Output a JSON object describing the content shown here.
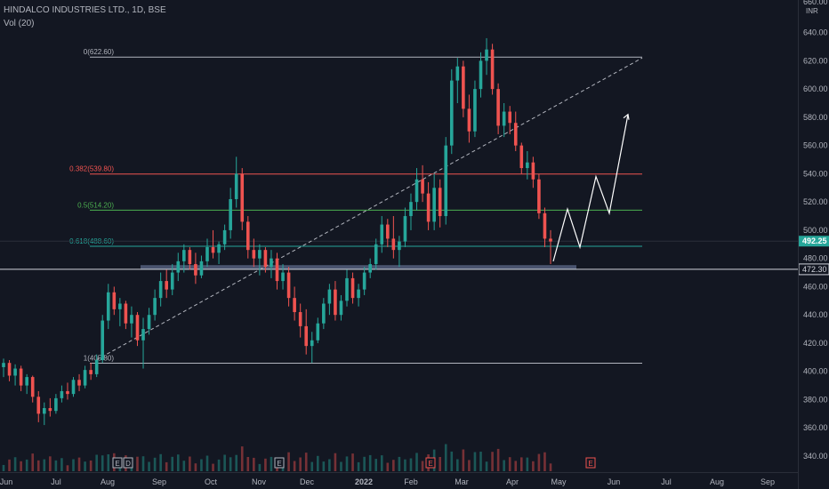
{
  "header": {
    "symbol_title": "HINDALCO INDUSTRIES LTD., 1D, BSE",
    "volume_label": "Vol (20)"
  },
  "colors": {
    "background": "#131722",
    "up": "#26a69a",
    "down": "#ef5350",
    "text": "#b2b5be",
    "fib_0": "#b2b5be",
    "fib_0382": "#ef5350",
    "fib_05": "#4caf50",
    "fib_0618": "#26a69a",
    "fib_1": "#b2b5be",
    "support_zone": "#5d6a8a"
  },
  "chart_data": {
    "type": "candlestick",
    "title": "HINDALCO INDUSTRIES LTD., 1D, BSE",
    "currency_label": "INR",
    "y_axis": {
      "ticks": [
        340,
        360,
        380,
        400,
        420,
        440,
        460,
        480,
        500,
        520,
        540,
        560,
        580,
        600,
        620,
        640
      ],
      "top_label": "660.00"
    },
    "x_axis": {
      "ticks": [
        "Jun",
        "Jul",
        "Aug",
        "Sep",
        "Oct",
        "Nov",
        "Dec",
        "2022",
        "Feb",
        "Mar",
        "Apr",
        "May",
        "Jun",
        "Jul",
        "Aug",
        "Sep"
      ]
    },
    "price_labels": {
      "last_price": "492.25",
      "horizontal_line": "472.30"
    },
    "fib_levels": [
      {
        "label": "0(622.60)",
        "value": 622.6
      },
      {
        "label": "0.382(539.80)",
        "value": 539.8
      },
      {
        "label": "0.5(514.20)",
        "value": 514.2
      },
      {
        "label": "0.618(488.60)",
        "value": 488.6
      },
      {
        "label": "1(405.80)",
        "value": 405.8
      }
    ],
    "trend_line": {
      "from": {
        "x": "Aug",
        "price": 408
      },
      "to": {
        "x": "Jul",
        "price": 622
      }
    },
    "support_zone": {
      "from": "Sep",
      "to": "May",
      "high": 474,
      "low": 472
    },
    "projection_path": [
      {
        "x": "May",
        "price": 478
      },
      {
        "x": "May",
        "price": 515
      },
      {
        "x": "May",
        "price": 488
      },
      {
        "x": "Jun",
        "price": 538
      },
      {
        "x": "Jun",
        "price": 512
      },
      {
        "x": "Jun",
        "price": 582
      }
    ],
    "event_markers": [
      {
        "label": "E",
        "x": "Aug"
      },
      {
        "label": "D",
        "x": "Aug"
      },
      {
        "label": "E",
        "x": "Nov"
      },
      {
        "label": "E",
        "x": "Feb"
      },
      {
        "label": "E",
        "x": "May"
      }
    ],
    "candles": [
      {
        "o": 403,
        "h": 409,
        "l": 396,
        "c": 406
      },
      {
        "o": 406,
        "h": 408,
        "l": 393,
        "c": 397
      },
      {
        "o": 397,
        "h": 405,
        "l": 390,
        "c": 402
      },
      {
        "o": 402,
        "h": 404,
        "l": 386,
        "c": 390
      },
      {
        "o": 390,
        "h": 398,
        "l": 384,
        "c": 396
      },
      {
        "o": 396,
        "h": 397,
        "l": 378,
        "c": 382
      },
      {
        "o": 382,
        "h": 386,
        "l": 364,
        "c": 370
      },
      {
        "o": 370,
        "h": 378,
        "l": 362,
        "c": 374
      },
      {
        "o": 374,
        "h": 381,
        "l": 368,
        "c": 372
      },
      {
        "o": 372,
        "h": 384,
        "l": 370,
        "c": 381
      },
      {
        "o": 381,
        "h": 390,
        "l": 378,
        "c": 386
      },
      {
        "o": 386,
        "h": 392,
        "l": 380,
        "c": 384
      },
      {
        "o": 384,
        "h": 396,
        "l": 382,
        "c": 394
      },
      {
        "o": 394,
        "h": 398,
        "l": 386,
        "c": 390
      },
      {
        "o": 390,
        "h": 404,
        "l": 388,
        "c": 401
      },
      {
        "o": 401,
        "h": 406,
        "l": 394,
        "c": 398
      },
      {
        "o": 398,
        "h": 412,
        "l": 396,
        "c": 408
      },
      {
        "o": 408,
        "h": 440,
        "l": 406,
        "c": 436
      },
      {
        "o": 436,
        "h": 462,
        "l": 430,
        "c": 456
      },
      {
        "o": 456,
        "h": 460,
        "l": 440,
        "c": 444
      },
      {
        "o": 444,
        "h": 452,
        "l": 432,
        "c": 448
      },
      {
        "o": 448,
        "h": 450,
        "l": 430,
        "c": 434
      },
      {
        "o": 434,
        "h": 446,
        "l": 424,
        "c": 440
      },
      {
        "o": 440,
        "h": 442,
        "l": 418,
        "c": 422
      },
      {
        "o": 422,
        "h": 438,
        "l": 402,
        "c": 430
      },
      {
        "o": 430,
        "h": 445,
        "l": 426,
        "c": 440
      },
      {
        "o": 440,
        "h": 458,
        "l": 436,
        "c": 452
      },
      {
        "o": 452,
        "h": 470,
        "l": 446,
        "c": 464
      },
      {
        "o": 464,
        "h": 472,
        "l": 452,
        "c": 458
      },
      {
        "o": 458,
        "h": 476,
        "l": 454,
        "c": 470
      },
      {
        "o": 470,
        "h": 484,
        "l": 464,
        "c": 478
      },
      {
        "o": 478,
        "h": 490,
        "l": 470,
        "c": 486
      },
      {
        "o": 486,
        "h": 488,
        "l": 472,
        "c": 476
      },
      {
        "o": 476,
        "h": 484,
        "l": 462,
        "c": 468
      },
      {
        "o": 468,
        "h": 482,
        "l": 466,
        "c": 478
      },
      {
        "o": 478,
        "h": 494,
        "l": 474,
        "c": 488
      },
      {
        "o": 488,
        "h": 500,
        "l": 480,
        "c": 484
      },
      {
        "o": 484,
        "h": 492,
        "l": 476,
        "c": 490
      },
      {
        "o": 490,
        "h": 504,
        "l": 486,
        "c": 500
      },
      {
        "o": 500,
        "h": 530,
        "l": 494,
        "c": 522
      },
      {
        "o": 522,
        "h": 552,
        "l": 516,
        "c": 540
      },
      {
        "o": 540,
        "h": 544,
        "l": 500,
        "c": 506
      },
      {
        "o": 506,
        "h": 510,
        "l": 480,
        "c": 486
      },
      {
        "o": 486,
        "h": 494,
        "l": 474,
        "c": 480
      },
      {
        "o": 480,
        "h": 490,
        "l": 468,
        "c": 486
      },
      {
        "o": 486,
        "h": 488,
        "l": 470,
        "c": 474
      },
      {
        "o": 474,
        "h": 486,
        "l": 466,
        "c": 480
      },
      {
        "o": 480,
        "h": 484,
        "l": 458,
        "c": 464
      },
      {
        "o": 464,
        "h": 476,
        "l": 458,
        "c": 470
      },
      {
        "o": 470,
        "h": 474,
        "l": 446,
        "c": 452
      },
      {
        "o": 452,
        "h": 460,
        "l": 436,
        "c": 442
      },
      {
        "o": 442,
        "h": 448,
        "l": 424,
        "c": 432
      },
      {
        "o": 432,
        "h": 444,
        "l": 412,
        "c": 418
      },
      {
        "o": 418,
        "h": 428,
        "l": 406,
        "c": 422
      },
      {
        "o": 422,
        "h": 438,
        "l": 420,
        "c": 434
      },
      {
        "o": 434,
        "h": 452,
        "l": 430,
        "c": 448
      },
      {
        "o": 448,
        "h": 462,
        "l": 440,
        "c": 458
      },
      {
        "o": 458,
        "h": 464,
        "l": 436,
        "c": 440
      },
      {
        "o": 440,
        "h": 454,
        "l": 436,
        "c": 450
      },
      {
        "o": 450,
        "h": 472,
        "l": 446,
        "c": 466
      },
      {
        "o": 466,
        "h": 470,
        "l": 448,
        "c": 452
      },
      {
        "o": 452,
        "h": 462,
        "l": 446,
        "c": 458
      },
      {
        "o": 458,
        "h": 474,
        "l": 454,
        "c": 470
      },
      {
        "o": 470,
        "h": 480,
        "l": 466,
        "c": 476
      },
      {
        "o": 476,
        "h": 494,
        "l": 472,
        "c": 490
      },
      {
        "o": 490,
        "h": 510,
        "l": 484,
        "c": 504
      },
      {
        "o": 504,
        "h": 508,
        "l": 488,
        "c": 494
      },
      {
        "o": 494,
        "h": 510,
        "l": 480,
        "c": 486
      },
      {
        "o": 486,
        "h": 496,
        "l": 474,
        "c": 492
      },
      {
        "o": 492,
        "h": 516,
        "l": 488,
        "c": 510
      },
      {
        "o": 510,
        "h": 526,
        "l": 500,
        "c": 520
      },
      {
        "o": 520,
        "h": 544,
        "l": 514,
        "c": 536
      },
      {
        "o": 536,
        "h": 546,
        "l": 520,
        "c": 526
      },
      {
        "o": 526,
        "h": 534,
        "l": 500,
        "c": 506
      },
      {
        "o": 506,
        "h": 540,
        "l": 500,
        "c": 530
      },
      {
        "o": 530,
        "h": 536,
        "l": 502,
        "c": 510
      },
      {
        "o": 510,
        "h": 566,
        "l": 504,
        "c": 560
      },
      {
        "o": 560,
        "h": 614,
        "l": 554,
        "c": 606
      },
      {
        "o": 606,
        "h": 622,
        "l": 590,
        "c": 616
      },
      {
        "o": 616,
        "h": 620,
        "l": 580,
        "c": 586
      },
      {
        "o": 586,
        "h": 596,
        "l": 562,
        "c": 570
      },
      {
        "o": 570,
        "h": 606,
        "l": 566,
        "c": 600
      },
      {
        "o": 600,
        "h": 626,
        "l": 594,
        "c": 620
      },
      {
        "o": 620,
        "h": 636,
        "l": 610,
        "c": 628
      },
      {
        "o": 628,
        "h": 632,
        "l": 596,
        "c": 600
      },
      {
        "o": 600,
        "h": 604,
        "l": 568,
        "c": 574
      },
      {
        "o": 574,
        "h": 590,
        "l": 566,
        "c": 584
      },
      {
        "o": 584,
        "h": 588,
        "l": 568,
        "c": 576
      },
      {
        "o": 576,
        "h": 584,
        "l": 556,
        "c": 560
      },
      {
        "o": 560,
        "h": 562,
        "l": 540,
        "c": 544
      },
      {
        "o": 544,
        "h": 556,
        "l": 536,
        "c": 548
      },
      {
        "o": 548,
        "h": 552,
        "l": 530,
        "c": 536
      },
      {
        "o": 536,
        "h": 540,
        "l": 508,
        "c": 512
      },
      {
        "o": 512,
        "h": 516,
        "l": 488,
        "c": 494
      },
      {
        "o": 494,
        "h": 500,
        "l": 476,
        "c": 492
      }
    ]
  }
}
